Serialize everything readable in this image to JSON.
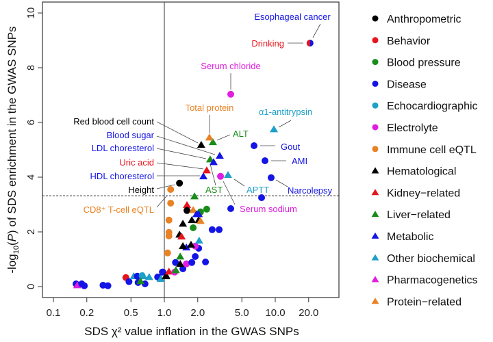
{
  "chart_data": {
    "type": "scatter",
    "title": "",
    "xlabel": "SDS χ² value inflation in the GWAS SNPs",
    "ylabel": {
      "prefix": "-log",
      "sub": "10",
      "open": "(",
      "italic": "P",
      "rest": ") of SDS enrichment in the GWAS SNPs"
    },
    "x_scale": "log",
    "xlim": [
      0.085,
      37
    ],
    "ylim": [
      -0.4,
      10.4
    ],
    "x_ticks": [
      "0.1",
      "0.2",
      "0.5",
      "1.0",
      "2.0",
      "5.0",
      "10.0",
      "20.0"
    ],
    "y_ticks": [
      "0",
      "2",
      "4",
      "6",
      "8",
      "10"
    ],
    "reference_lines": {
      "vertical_x": 1.0,
      "horizontal_y_dashed": 3.32
    },
    "legend_position": "right",
    "categories": [
      {
        "key": "A",
        "name": "Anthropometric",
        "color": "#000000",
        "marker": "circle"
      },
      {
        "key": "B",
        "name": "Behavior",
        "color": "#e8141c",
        "marker": "circle"
      },
      {
        "key": "BP",
        "name": "Blood pressure",
        "color": "#1a8c1a",
        "marker": "circle"
      },
      {
        "key": "D",
        "name": "Disease",
        "color": "#1414e6",
        "marker": "circle"
      },
      {
        "key": "E",
        "name": "Echocardiographic",
        "color": "#1ea0c8",
        "marker": "circle"
      },
      {
        "key": "El",
        "name": "Electrolyte",
        "color": "#e01ee0",
        "marker": "circle"
      },
      {
        "key": "I",
        "name": "Immune cell eQTL",
        "color": "#e88224",
        "marker": "circle"
      },
      {
        "key": "H",
        "name": "Hematological",
        "color": "#000000",
        "marker": "triangle"
      },
      {
        "key": "K",
        "name": "Kidney−related",
        "color": "#e8141c",
        "marker": "triangle"
      },
      {
        "key": "L",
        "name": "Liver−related",
        "color": "#1a8c1a",
        "marker": "triangle"
      },
      {
        "key": "M",
        "name": "Metabolic",
        "color": "#1414e6",
        "marker": "triangle"
      },
      {
        "key": "O",
        "name": "Other biochemical",
        "color": "#1ea0c8",
        "marker": "triangle"
      },
      {
        "key": "P",
        "name": "Pharmacogenetics",
        "color": "#e01ee0",
        "marker": "triangle"
      },
      {
        "key": "Pr",
        "name": "Protein−related",
        "color": "#e88224",
        "marker": "triangle"
      }
    ],
    "points": [
      [
        0.16,
        0.1,
        "D"
      ],
      [
        0.164,
        0.05,
        "P"
      ],
      [
        0.18,
        0.1,
        "D"
      ],
      [
        0.19,
        0.03,
        "D"
      ],
      [
        0.28,
        0.05,
        "D"
      ],
      [
        0.31,
        0.03,
        "D"
      ],
      [
        0.45,
        0.33,
        "B"
      ],
      [
        0.48,
        0.18,
        "D"
      ],
      [
        0.53,
        0.38,
        "O"
      ],
      [
        0.57,
        0.38,
        "D"
      ],
      [
        0.58,
        0.15,
        "D"
      ],
      [
        0.63,
        0.4,
        "E"
      ],
      [
        0.65,
        0.38,
        "O"
      ],
      [
        0.67,
        0.1,
        "D"
      ],
      [
        0.61,
        0.2,
        "L"
      ],
      [
        0.73,
        0.35,
        "O"
      ],
      [
        0.87,
        0.35,
        "D"
      ],
      [
        0.89,
        0.33,
        "D"
      ],
      [
        0.93,
        0.28,
        "O"
      ],
      [
        0.97,
        0.53,
        "D"
      ],
      [
        0.96,
        0.53,
        "D"
      ],
      [
        1.03,
        0.38,
        "H"
      ],
      [
        1.04,
        0.4,
        "H"
      ],
      [
        1.1,
        0.55,
        "K"
      ],
      [
        1.24,
        0.53,
        "El"
      ],
      [
        1.27,
        0.6,
        "L"
      ],
      [
        1.47,
        0.65,
        "D"
      ],
      [
        1.26,
        0.88,
        "D"
      ],
      [
        1.39,
        0.83,
        "H"
      ],
      [
        1.58,
        0.83,
        "El"
      ],
      [
        1.77,
        0.88,
        "D"
      ],
      [
        2.35,
        0.9,
        "D"
      ],
      [
        1.39,
        1.1,
        "L"
      ],
      [
        1.9,
        1.1,
        "D"
      ],
      [
        2.04,
        1.4,
        "D"
      ],
      [
        1.58,
        1.43,
        "M"
      ],
      [
        1.9,
        1.48,
        "El"
      ],
      [
        1.74,
        1.53,
        "H"
      ],
      [
        1.47,
        1.48,
        "H"
      ],
      [
        2.06,
        1.68,
        "O"
      ],
      [
        1.37,
        1.9,
        "H"
      ],
      [
        1.43,
        1.83,
        "K"
      ],
      [
        1.07,
        1.23,
        "I"
      ],
      [
        1.1,
        1.85,
        "I"
      ],
      [
        1.1,
        1.98,
        "I"
      ],
      [
        1.1,
        2.43,
        "I"
      ],
      [
        1.14,
        3.05,
        "I"
      ],
      [
        1.14,
        3.55,
        "I"
      ],
      [
        1.47,
        2.3,
        "H"
      ],
      [
        1.77,
        2.43,
        "H"
      ],
      [
        2.04,
        2.43,
        "H"
      ],
      [
        2.12,
        2.4,
        "Pr"
      ],
      [
        1.82,
        2.15,
        "BP"
      ],
      [
        2.7,
        2.08,
        "D"
      ],
      [
        3.12,
        2.08,
        "D"
      ],
      [
        1.6,
        2.98,
        "K"
      ],
      [
        1.6,
        2.78,
        "A"
      ],
      [
        1.82,
        2.8,
        "Pr"
      ],
      [
        2.12,
        2.73,
        "BP"
      ],
      [
        2.41,
        2.83,
        "BP"
      ],
      [
        1.95,
        2.65,
        "M"
      ],
      [
        2.04,
        2.65,
        "M"
      ],
      [
        1.87,
        3.3,
        "L"
      ],
      [
        7.53,
        3.25,
        "D"
      ],
      [
        3.97,
        2.85,
        "D"
      ],
      [
        1.37,
        3.78,
        "A"
      ],
      [
        2.25,
        4.03,
        "M"
      ],
      [
        2.41,
        4.25,
        "K"
      ],
      [
        2.59,
        4.65,
        "L"
      ],
      [
        2.78,
        4.55,
        "M"
      ],
      [
        3.16,
        4.78,
        "M"
      ],
      [
        2.15,
        5.18,
        "H"
      ],
      [
        2.74,
        5.28,
        "L"
      ],
      [
        2.55,
        5.45,
        "Pr"
      ],
      [
        3.21,
        4.03,
        "El"
      ],
      [
        3.75,
        4.08,
        "O"
      ],
      [
        9.72,
        5.75,
        "O"
      ],
      [
        6.44,
        5.15,
        "D"
      ],
      [
        8.08,
        4.6,
        "D"
      ],
      [
        9.18,
        3.98,
        "D"
      ],
      [
        3.97,
        7.03,
        "El"
      ],
      [
        20.6,
        8.9,
        "D"
      ],
      [
        20.6,
        8.9,
        "B"
      ]
    ],
    "annotations": [
      {
        "text": "Esophageal cancer",
        "color": "#1414e6"
      },
      {
        "text": "Drinking",
        "color": "#e8141c"
      },
      {
        "text": "Serum chloride",
        "color": "#e01ee0"
      },
      {
        "text": "Total protein",
        "color": "#e88224"
      },
      {
        "text": "α1-antitrypsin",
        "color": "#1ea0c8"
      },
      {
        "text": "Red blood cell count",
        "color": "#000000"
      },
      {
        "text": "ALT",
        "color": "#1a8c1a"
      },
      {
        "text": "Gout",
        "color": "#1414e6"
      },
      {
        "text": "Blood sugar",
        "color": "#1414e6"
      },
      {
        "text": "LDL choresterol",
        "color": "#1414e6"
      },
      {
        "text": "AMI",
        "color": "#1414e6"
      },
      {
        "text": "Uric acid",
        "color": "#e8141c"
      },
      {
        "text": "HDL choresterol",
        "color": "#1414e6"
      },
      {
        "text": "Narcolepsy",
        "color": "#1414e6"
      },
      {
        "text": "APTT",
        "color": "#1ea0c8"
      },
      {
        "text": "AST",
        "color": "#1a8c1a"
      },
      {
        "text": "Height",
        "color": "#000000"
      },
      {
        "text": "Serum sodium",
        "color": "#e01ee0"
      },
      {
        "text": "CD8⁺ T-cell eQTL",
        "color": "#e88224"
      }
    ]
  }
}
